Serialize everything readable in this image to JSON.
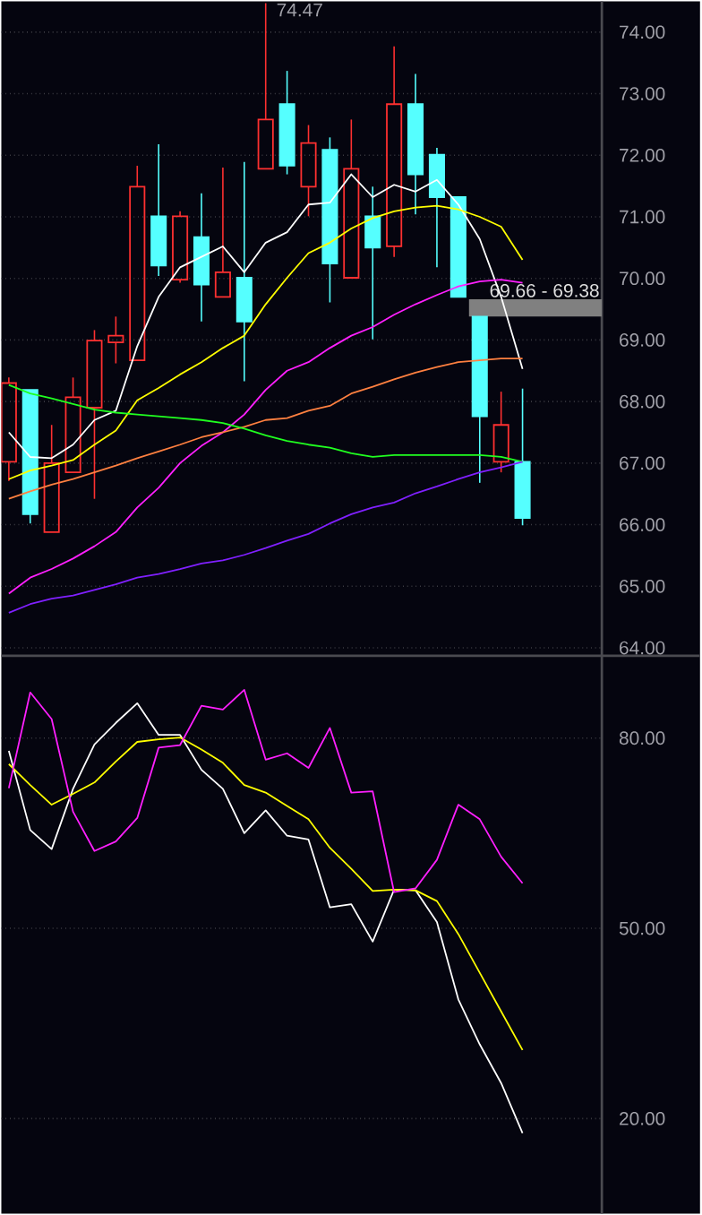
{
  "chart_data": [
    {
      "type": "candlestick",
      "categories": [
        null,
        null,
        null,
        null,
        null,
        null,
        null,
        null,
        null,
        null,
        null,
        null,
        null,
        null,
        null,
        null,
        null,
        null,
        null,
        null,
        null,
        null,
        null,
        null,
        null
      ],
      "ohlc": [
        [
          67.02,
          68.39,
          66.71,
          68.3
        ],
        [
          68.19,
          68.19,
          66.02,
          66.17
        ],
        [
          65.88,
          67.62,
          65.88,
          67.0
        ],
        [
          66.85,
          68.39,
          66.85,
          68.07
        ],
        [
          67.9,
          69.16,
          66.42,
          68.99
        ],
        [
          68.96,
          69.38,
          68.62,
          69.07
        ],
        [
          68.67,
          71.83,
          68.67,
          71.49
        ],
        [
          71.01,
          72.18,
          70.04,
          70.21
        ],
        [
          69.98,
          71.09,
          69.93,
          71.01
        ],
        [
          70.67,
          71.38,
          69.3,
          69.9
        ],
        [
          69.7,
          71.8,
          69.7,
          70.1
        ],
        [
          70.01,
          71.89,
          68.33,
          69.3
        ],
        [
          71.78,
          74.47,
          71.78,
          72.58
        ],
        [
          72.83,
          73.37,
          71.69,
          71.83
        ],
        [
          71.49,
          72.49,
          71.01,
          72.2
        ],
        [
          72.09,
          72.29,
          69.61,
          70.24
        ],
        [
          70.01,
          72.58,
          70.01,
          71.78
        ],
        [
          71.01,
          71.49,
          69.01,
          70.5
        ],
        [
          70.52,
          73.77,
          70.35,
          72.83
        ],
        [
          72.83,
          73.32,
          71.04,
          71.69
        ],
        [
          72.01,
          72.12,
          70.18,
          71.32
        ],
        [
          71.32,
          71.32,
          69.7,
          69.7
        ],
        [
          69.38,
          69.38,
          66.68,
          67.76
        ],
        [
          67.02,
          68.16,
          66.85,
          67.62
        ],
        [
          67.02,
          68.21,
          65.99,
          66.11
        ]
      ],
      "colors": [
        "#ff3030",
        "#55ffff",
        "#ff3030",
        "#ff3030",
        "#ff3030",
        "#ff3030",
        "#ff3030",
        "#55ffff",
        "#ff3030",
        "#55ffff",
        "#ff3030",
        "#55ffff",
        "#ff3030",
        "#55ffff",
        "#ff3030",
        "#55ffff",
        "#ff3030",
        "#55ffff",
        "#ff3030",
        "#55ffff",
        "#55ffff",
        "#55ffff",
        "#55ffff",
        "#ff3030",
        "#55ffff"
      ],
      "series": [
        {
          "type": "line",
          "color": "#ffffff",
          "values": [
            67.5,
            67.1,
            67.08,
            67.3,
            67.7,
            67.85,
            68.9,
            69.7,
            70.18,
            70.35,
            70.52,
            70.1,
            70.58,
            70.75,
            71.2,
            71.23,
            71.69,
            71.32,
            71.52,
            71.41,
            71.6,
            71.2,
            70.64,
            69.7,
            68.53
          ]
        },
        {
          "type": "line",
          "color": "#ffff00",
          "values": [
            66.74,
            66.88,
            66.96,
            67.05,
            67.3,
            67.53,
            68.02,
            68.22,
            68.44,
            68.64,
            68.87,
            69.07,
            69.58,
            70.01,
            70.41,
            70.58,
            70.81,
            70.98,
            71.09,
            71.15,
            71.18,
            71.12,
            71.0,
            70.84,
            70.3
          ]
        },
        {
          "type": "line",
          "color": "#ff20ff",
          "values": [
            64.88,
            65.14,
            65.28,
            65.45,
            65.65,
            65.88,
            66.28,
            66.6,
            67.0,
            67.28,
            67.5,
            67.79,
            68.19,
            68.5,
            68.64,
            68.87,
            69.07,
            69.21,
            69.41,
            69.58,
            69.73,
            69.87,
            69.95,
            69.98,
            69.93
          ]
        },
        {
          "type": "line",
          "color": "#ff8040",
          "values": [
            66.42,
            66.54,
            66.65,
            66.74,
            66.85,
            66.96,
            67.08,
            67.19,
            67.3,
            67.42,
            67.5,
            67.59,
            67.7,
            67.73,
            67.85,
            67.93,
            68.13,
            68.24,
            68.36,
            68.47,
            68.56,
            68.64,
            68.67,
            68.7,
            68.7
          ]
        },
        {
          "type": "line",
          "color": "#20ff20",
          "values": [
            68.27,
            68.13,
            68.05,
            67.96,
            67.87,
            67.82,
            67.79,
            67.76,
            67.73,
            67.7,
            67.65,
            67.56,
            67.45,
            67.36,
            67.3,
            67.25,
            67.16,
            67.1,
            67.13,
            67.13,
            67.13,
            67.13,
            67.13,
            67.1,
            67.02
          ]
        },
        {
          "type": "line",
          "color": "#8020ff",
          "values": [
            64.57,
            64.71,
            64.8,
            64.85,
            64.94,
            65.03,
            65.14,
            65.2,
            65.28,
            65.37,
            65.42,
            65.51,
            65.62,
            65.74,
            65.85,
            66.02,
            66.17,
            66.28,
            66.36,
            66.51,
            66.62,
            66.74,
            66.85,
            66.93,
            67.02
          ]
        }
      ],
      "ylim": [
        63.9,
        74.5
      ],
      "yticks": [
        {
          "value": 64,
          "label": "64.00"
        },
        {
          "value": 65,
          "label": "65.00"
        },
        {
          "value": 66,
          "label": "66.00"
        },
        {
          "value": 67,
          "label": "67.00"
        },
        {
          "value": 68,
          "label": "68.00"
        },
        {
          "value": 69,
          "label": "69.00"
        },
        {
          "value": 70,
          "label": "70.00"
        },
        {
          "value": 71,
          "label": "71.00"
        },
        {
          "value": 72,
          "label": "72.00"
        },
        {
          "value": 73,
          "label": "73.00"
        },
        {
          "value": 74,
          "label": "74.00"
        }
      ],
      "annotations": [
        "74.47"
      ],
      "bands": [
        {
          "axis": "y",
          "from": 69.38,
          "to": 69.66,
          "label": "69.66 - 69.38",
          "color": "#808080"
        }
      ],
      "grid": "y",
      "tick_labels": "y"
    },
    {
      "type": "line",
      "categories": [
        null,
        null,
        null,
        null,
        null,
        null,
        null,
        null,
        null,
        null,
        null,
        null,
        null,
        null,
        null,
        null,
        null,
        null,
        null,
        null,
        null,
        null,
        null,
        null,
        null
      ],
      "series": [
        {
          "color": "#ffffff",
          "values": [
            78,
            65.5,
            62.5,
            72,
            79,
            82.4,
            85.5,
            80.5,
            80.5,
            75,
            72,
            65,
            68.6,
            64.6,
            64,
            53.3,
            53.8,
            47.9,
            56.1,
            56.0,
            51.0,
            38.8,
            31.7,
            25.6,
            17.7
          ]
        },
        {
          "color": "#ffff00",
          "values": [
            75.9,
            72.6,
            69.5,
            71.2,
            73.0,
            76.3,
            79.4,
            79.8,
            80.1,
            78.2,
            76.1,
            72.6,
            71.4,
            69.3,
            67.2,
            62.7,
            59.4,
            55.9,
            56.1,
            56.0,
            54.3,
            49.1,
            43.0,
            36.9,
            30.8
          ]
        },
        {
          "color": "#ff20ff",
          "values": [
            72.1,
            87.2,
            83,
            68.4,
            62.2,
            63.7,
            67.4,
            78.5,
            78.9,
            85.1,
            84.5,
            87.6,
            76.6,
            77.6,
            75.3,
            81.6,
            71.4,
            71.6,
            55.7,
            56.3,
            60.8,
            69.5,
            67.2,
            61.3,
            57.1
          ]
        }
      ],
      "ylim": [
        5,
        92.7
      ],
      "yticks": [
        {
          "value": 20,
          "label": "20.00"
        },
        {
          "value": 50,
          "label": "50.00"
        },
        {
          "value": 80,
          "label": "80.00"
        }
      ],
      "grid": "y",
      "tick_labels": "y"
    }
  ]
}
